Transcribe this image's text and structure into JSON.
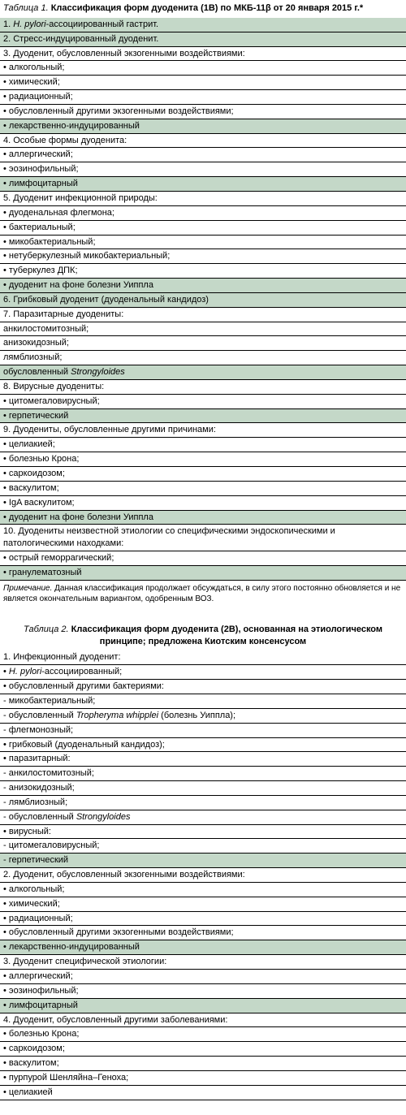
{
  "table1": {
    "caption_prefix": "Таблица 1.",
    "caption_title": "Классификация форм дуоденита (1В) по МКБ-11β от 20 января 2015 г.*",
    "rows": [
      {
        "shaded": true,
        "html": "1. <span class='italic'>H. pylori</span>-ассоциированный гастрит."
      },
      {
        "shaded": true,
        "text": "2. Стресс-индуцированный дуоденит."
      },
      {
        "shaded": false,
        "text": "3. Дуоденит, обусловленный экзогенными воздействиями:"
      },
      {
        "shaded": false,
        "text": "• алкогольный;"
      },
      {
        "shaded": false,
        "text": "• химический;"
      },
      {
        "shaded": false,
        "text": "• радиационный;"
      },
      {
        "shaded": false,
        "text": "• обусловленный другими экзогенными воздействиями;"
      },
      {
        "shaded": true,
        "text": "• лекарственно-индуцированный"
      },
      {
        "shaded": false,
        "text": "4. Особые формы дуоденита:"
      },
      {
        "shaded": false,
        "text": "• аллергический;"
      },
      {
        "shaded": false,
        "text": "• эозинофильный;"
      },
      {
        "shaded": true,
        "text": "• лимфоцитарный"
      },
      {
        "shaded": false,
        "text": "5. Дуоденит инфекционной природы:"
      },
      {
        "shaded": false,
        "text": "• дуоденальная флегмона;"
      },
      {
        "shaded": false,
        "text": "• бактериальный;"
      },
      {
        "shaded": false,
        "text": "• микобактериальный;"
      },
      {
        "shaded": false,
        "text": "• нетуберкулезный микобактериальный;"
      },
      {
        "shaded": false,
        "text": "• туберкулез ДПК;"
      },
      {
        "shaded": true,
        "text": "• дуоденит на фоне болезни Уиппла"
      },
      {
        "shaded": true,
        "text": "6. Грибковый дуоденит (дуоденальный кандидоз)"
      },
      {
        "shaded": false,
        "text": "7. Паразитарные дуодениты:"
      },
      {
        "shaded": false,
        "text": "анкилостомитозный;"
      },
      {
        "shaded": false,
        "text": "анизокидозный;"
      },
      {
        "shaded": false,
        "text": "лямблиозный;"
      },
      {
        "shaded": true,
        "html": "обусловленный <span class='italic'>Strongyloides</span>"
      },
      {
        "shaded": false,
        "text": "8. Вирусные дуодениты:"
      },
      {
        "shaded": false,
        "text": "• цитомегаловирусный;"
      },
      {
        "shaded": true,
        "text": "• герпетический"
      },
      {
        "shaded": false,
        "text": "9. Дуодениты, обусловленные другими причинами:"
      },
      {
        "shaded": false,
        "text": "• целиакией;"
      },
      {
        "shaded": false,
        "text": "• болезнью Крона;"
      },
      {
        "shaded": false,
        "text": "• саркоидозом;"
      },
      {
        "shaded": false,
        "text": "• васкулитом;"
      },
      {
        "shaded": false,
        "text": "• IgA васкулитом;"
      },
      {
        "shaded": true,
        "text": "• дуоденит на фоне болезни Уиппла"
      },
      {
        "shaded": false,
        "text": "10. Дуодениты неизвестной этиологии со специфическими эндоскопическими и патологическими находками:"
      },
      {
        "shaded": false,
        "text": "• острый геморрагический;"
      },
      {
        "shaded": true,
        "text": "• гранулематозный"
      }
    ],
    "note_prefix": "Примечание.",
    "note_text": "Данная классификация продолжает обсуждаться, в силу этого постоянно обновляется и не является окончательным вариантом, одобренным ВОЗ."
  },
  "table2": {
    "caption_prefix": "Таблица 2.",
    "caption_title": "Классификация форм дуоденита (2В), основанная на этиологическом принципе; предложена Киотским консенсусом",
    "rows": [
      {
        "shaded": false,
        "text": "1. Инфекционный дуоденит:"
      },
      {
        "shaded": false,
        "html": "• <span class='italic'>H. pylori</span>-ассоциированный;"
      },
      {
        "shaded": false,
        "text": "• обусловленный другими бактериями:"
      },
      {
        "shaded": false,
        "text": "- микобактериальный;"
      },
      {
        "shaded": false,
        "html": "- обусловленный <span class='italic'>Tropheryma whipplei</span> (болезнь Уиппла);"
      },
      {
        "shaded": false,
        "text": "- флегмонозный;"
      },
      {
        "shaded": false,
        "text": "• грибковый (дуоденальный кандидоз);"
      },
      {
        "shaded": false,
        "text": "• паразитарный:"
      },
      {
        "shaded": false,
        "text": "- анкилостомитозный;"
      },
      {
        "shaded": false,
        "text": "- анизокидозный;"
      },
      {
        "shaded": false,
        "text": "- лямблиозный;"
      },
      {
        "shaded": false,
        "html": "- обусловленный <span class='italic'>Strongyloides</span>"
      },
      {
        "shaded": false,
        "text": "• вирусный:"
      },
      {
        "shaded": false,
        "text": "- цитомегаловирусный;"
      },
      {
        "shaded": true,
        "text": "- герпетический"
      },
      {
        "shaded": false,
        "text": "2. Дуоденит, обусловленный экзогенными воздействиями:"
      },
      {
        "shaded": false,
        "text": "• алкогольный;"
      },
      {
        "shaded": false,
        "text": "• химический;"
      },
      {
        "shaded": false,
        "text": "• радиационный;"
      },
      {
        "shaded": false,
        "text": "• обусловленный другими экзогенными воздействиями;"
      },
      {
        "shaded": true,
        "text": "• лекарственно-индуцированный"
      },
      {
        "shaded": false,
        "text": "3. Дуоденит специфической этиологии:"
      },
      {
        "shaded": false,
        "text": "• аллергический;"
      },
      {
        "shaded": false,
        "text": "• эозинофильный;"
      },
      {
        "shaded": true,
        "text": "• лимфоцитарный"
      },
      {
        "shaded": false,
        "text": "4. Дуоденит, обусловленный другими заболеваниями:"
      },
      {
        "shaded": false,
        "text": "• болезнью Крона;"
      },
      {
        "shaded": false,
        "text": "• саркоидозом;"
      },
      {
        "shaded": false,
        "text": "• васкулитом;"
      },
      {
        "shaded": false,
        "text": "• пурпурой Шенляйна–Геноха;"
      },
      {
        "shaded": false,
        "text": "• целиакией"
      }
    ]
  },
  "colors": {
    "shaded_row": "#c4d8c8",
    "border": "#000000",
    "text": "#000000",
    "background": "#ffffff"
  }
}
